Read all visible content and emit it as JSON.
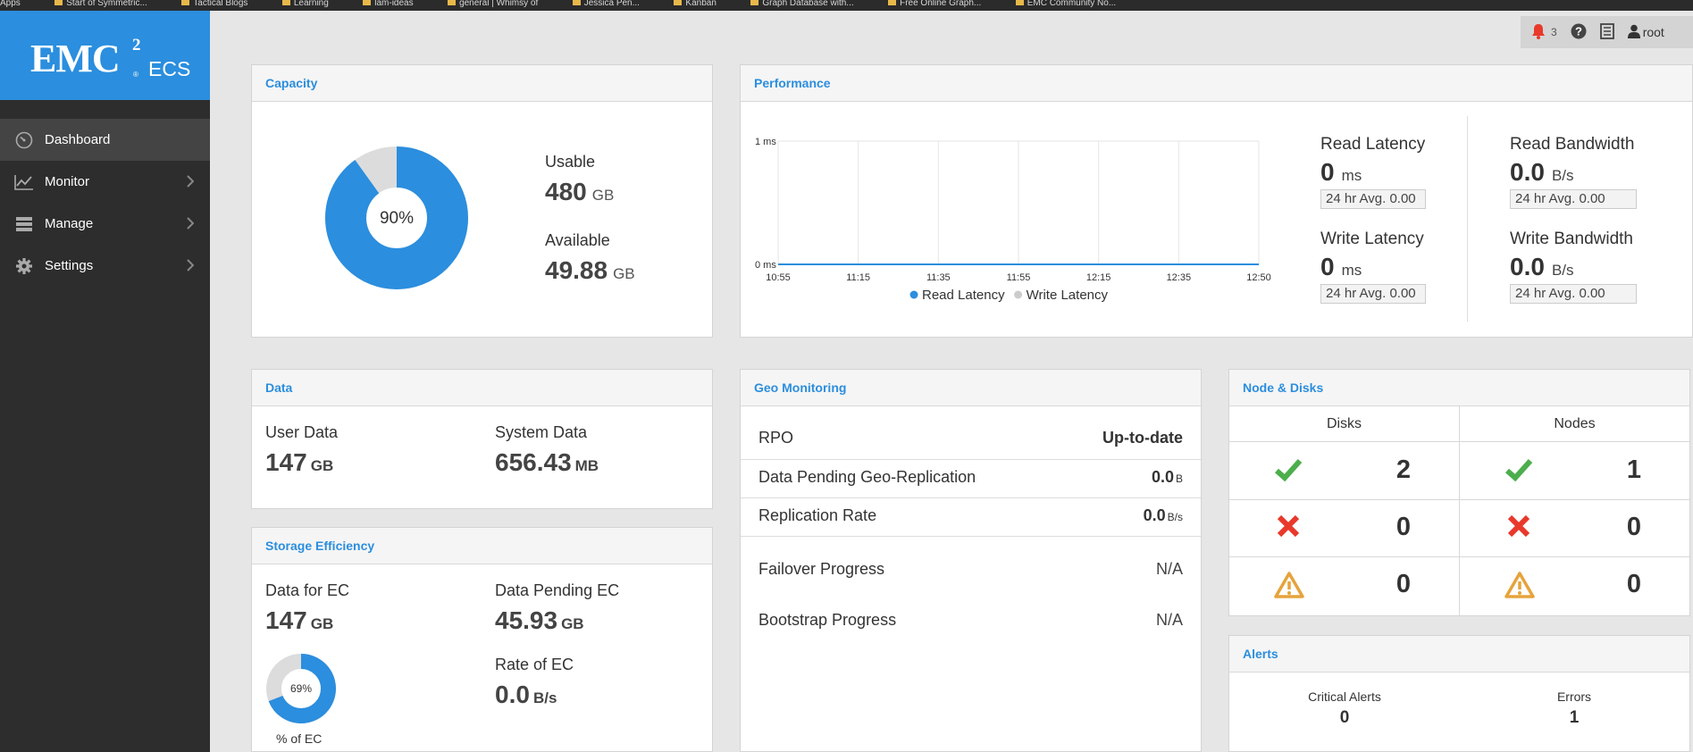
{
  "bookmarks": [
    "Apps",
    "Start of Symmetric...",
    "Tactical Blogs",
    "Learning",
    "lam-ideas",
    "general | Whimsy of",
    "Jessica Pen...",
    "Kanban",
    "Graph Database with...",
    "Free Online Graph...",
    "EMC Community No..."
  ],
  "brand": {
    "name": "EMC",
    "sup": "2",
    "reg": "®",
    "product": "ECS"
  },
  "sidebar": {
    "items": [
      {
        "label": "Dashboard",
        "icon": "dashboard-gauge-icon",
        "active": true
      },
      {
        "label": "Monitor",
        "icon": "line-chart-icon"
      },
      {
        "label": "Manage",
        "icon": "storage-stack-icon"
      },
      {
        "label": "Settings",
        "icon": "gear-icon"
      }
    ]
  },
  "topbar": {
    "alert_count": "3",
    "user": "root"
  },
  "capacity": {
    "title": "Capacity",
    "percent_label": "90%",
    "used_fraction": 0.9,
    "usable_label": "Usable",
    "usable_value": "480",
    "usable_unit": "GB",
    "available_label": "Available",
    "available_value": "49.88",
    "available_unit": "GB"
  },
  "performance": {
    "title": "Performance",
    "read_latency_label": "Read Latency",
    "read_latency_value": "0",
    "read_latency_unit": "ms",
    "read_latency_avg": "24 hr Avg. 0.00",
    "write_latency_label": "Write Latency",
    "write_latency_value": "0",
    "write_latency_unit": "ms",
    "write_latency_avg": "24 hr Avg. 0.00",
    "read_bw_label": "Read Bandwidth",
    "read_bw_value": "0.0",
    "read_bw_unit": "B/s",
    "read_bw_avg": "24 hr Avg. 0.00",
    "write_bw_label": "Write Bandwidth",
    "write_bw_value": "0.0",
    "write_bw_unit": "B/s",
    "write_bw_avg": "24 hr Avg. 0.00"
  },
  "chart_data": {
    "type": "line",
    "x": [
      "10:55",
      "11:15",
      "11:35",
      "11:55",
      "12:15",
      "12:35",
      "12:50"
    ],
    "y_ticks": [
      "1 ms",
      "0 ms"
    ],
    "ylim": [
      0,
      1
    ],
    "series": [
      {
        "name": "Read Latency",
        "values": [
          0,
          0,
          0,
          0,
          0,
          0,
          0
        ],
        "color": "#2b8ede"
      },
      {
        "name": "Write Latency",
        "values": [
          0,
          0,
          0,
          0,
          0,
          0,
          0
        ],
        "color": "#cccccc"
      }
    ],
    "grid": true,
    "legend": "bottom"
  },
  "data_panel": {
    "title": "Data",
    "user_label": "User Data",
    "user_value": "147",
    "user_unit": "GB",
    "system_label": "System Data",
    "system_value": "656.43",
    "system_unit": "MB"
  },
  "geo": {
    "title": "Geo Monitoring",
    "rpo_label": "RPO",
    "rpo_value": "Up-to-date",
    "pending_label": "Data Pending Geo-Replication",
    "pending_value": "0.0",
    "pending_unit": "B",
    "rate_label": "Replication Rate",
    "rate_value": "0.0",
    "rate_unit": "B/s",
    "failover_label": "Failover Progress",
    "failover_value": "N/A",
    "bootstrap_label": "Bootstrap Progress",
    "bootstrap_value": "N/A"
  },
  "nodes": {
    "title": "Node & Disks",
    "disks_header": "Disks",
    "nodes_header": "Nodes",
    "disks_good": "2",
    "disks_bad": "0",
    "disks_warn": "0",
    "nodes_good": "1",
    "nodes_bad": "0",
    "nodes_warn": "0"
  },
  "efficiency": {
    "title": "Storage Efficiency",
    "ec_label": "Data for EC",
    "ec_value": "147",
    "ec_unit": "GB",
    "pending_label": "Data Pending EC",
    "pending_value": "45.93",
    "pending_unit": "GB",
    "rate_label": "Rate of EC",
    "rate_value": "0.0",
    "rate_unit": "B/s",
    "percent_label": "69%",
    "percent_fraction": 0.69,
    "caption": "% of EC"
  },
  "alerts": {
    "title": "Alerts",
    "critical_label": "Critical Alerts",
    "critical_value": "0",
    "errors_label": "Errors",
    "errors_value": "1"
  },
  "colors": {
    "accent": "#2b8ede",
    "good": "#4cae4c",
    "bad": "#e8392b",
    "warn": "#e6a33b"
  }
}
